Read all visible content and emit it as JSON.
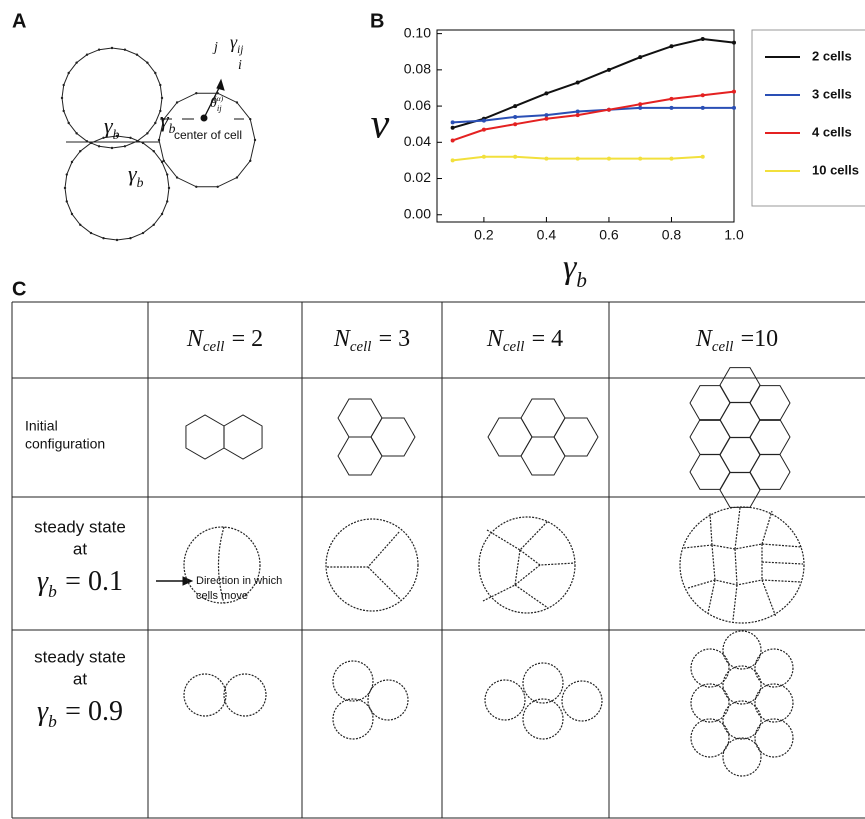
{
  "panel_labels": [
    "A",
    "B",
    "C"
  ],
  "panel_a": {
    "boundary_labels": [
      {
        "symbol": "γ",
        "subscript": "b"
      },
      {
        "symbol": "γ",
        "subscript": "b"
      },
      {
        "symbol": "γ",
        "subscript": "b"
      }
    ],
    "edge_label": {
      "symbol": "γ",
      "subscript": "ij"
    },
    "vertex_labels": [
      "j",
      "i"
    ],
    "angle_label": {
      "symbol": "θ",
      "subscript": "ij",
      "superscript": "(α)"
    },
    "center_label": "center of cell"
  },
  "chart_data": {
    "type": "line",
    "ylabel": "v",
    "xlabel": {
      "symbol": "γ",
      "subscript": "b"
    },
    "x": [
      0.1,
      0.2,
      0.3,
      0.4,
      0.5,
      0.6,
      0.7,
      0.8,
      0.9,
      1.0
    ],
    "series": [
      {
        "name": "2 cells",
        "color": "#111111",
        "values": [
          0.048,
          0.053,
          0.06,
          0.067,
          0.073,
          0.08,
          0.087,
          0.093,
          0.097,
          0.095
        ]
      },
      {
        "name": "3 cells",
        "color": "#2a4fb5",
        "values": [
          0.051,
          0.052,
          0.054,
          0.055,
          0.057,
          0.058,
          0.059,
          0.059,
          0.059,
          0.059
        ]
      },
      {
        "name": "4 cells",
        "color": "#e42121",
        "values": [
          0.041,
          0.047,
          0.05,
          0.053,
          0.055,
          0.058,
          0.061,
          0.064,
          0.066,
          0.068
        ]
      },
      {
        "name": "10 cells",
        "color": "#f2e03c",
        "values": [
          0.03,
          0.032,
          0.032,
          0.031,
          0.031,
          0.031,
          0.031,
          0.031,
          0.032,
          null
        ]
      }
    ],
    "xlim": [
      0.05,
      1.0
    ],
    "xticks": [
      0.2,
      0.4,
      0.6,
      0.8,
      {
        "value": 1.0,
        "label": "1.0"
      }
    ],
    "ylim": [
      -0.004,
      0.102
    ],
    "yticks": [
      {
        "value": 0,
        "label": "0.00"
      },
      {
        "value": 0.02,
        "label": "0.02"
      },
      {
        "value": 0.04,
        "label": "0.04"
      },
      {
        "value": 0.06,
        "label": "0.06"
      },
      {
        "value": 0.08,
        "label": "0.08"
      },
      {
        "value": 0.1,
        "label": "0.10"
      }
    ],
    "grid": false,
    "legend": "right"
  },
  "table": {
    "header": [
      {
        "symbol": "N",
        "subscript": "cell",
        "rest": "= 2"
      },
      {
        "symbol": "N",
        "subscript": "cell",
        "rest": "= 3"
      },
      {
        "symbol": "N",
        "subscript": "cell",
        "rest": "= 4"
      },
      {
        "symbol": "N",
        "subscript": "cell",
        "rest": "=10"
      }
    ],
    "rows": [
      {
        "label": [
          "Initial",
          "configuration"
        ]
      },
      {
        "label": [
          "steady state",
          "at"
        ],
        "condition": {
          "symbol": "γ",
          "subscript": "b",
          "rest": "= 0.1"
        },
        "annotation": [
          "Direction in which",
          "cells move"
        ]
      },
      {
        "label": [
          "steady state",
          "at"
        ],
        "condition": {
          "symbol": "γ",
          "subscript": "b",
          "rest": "= 0.9"
        }
      }
    ]
  }
}
